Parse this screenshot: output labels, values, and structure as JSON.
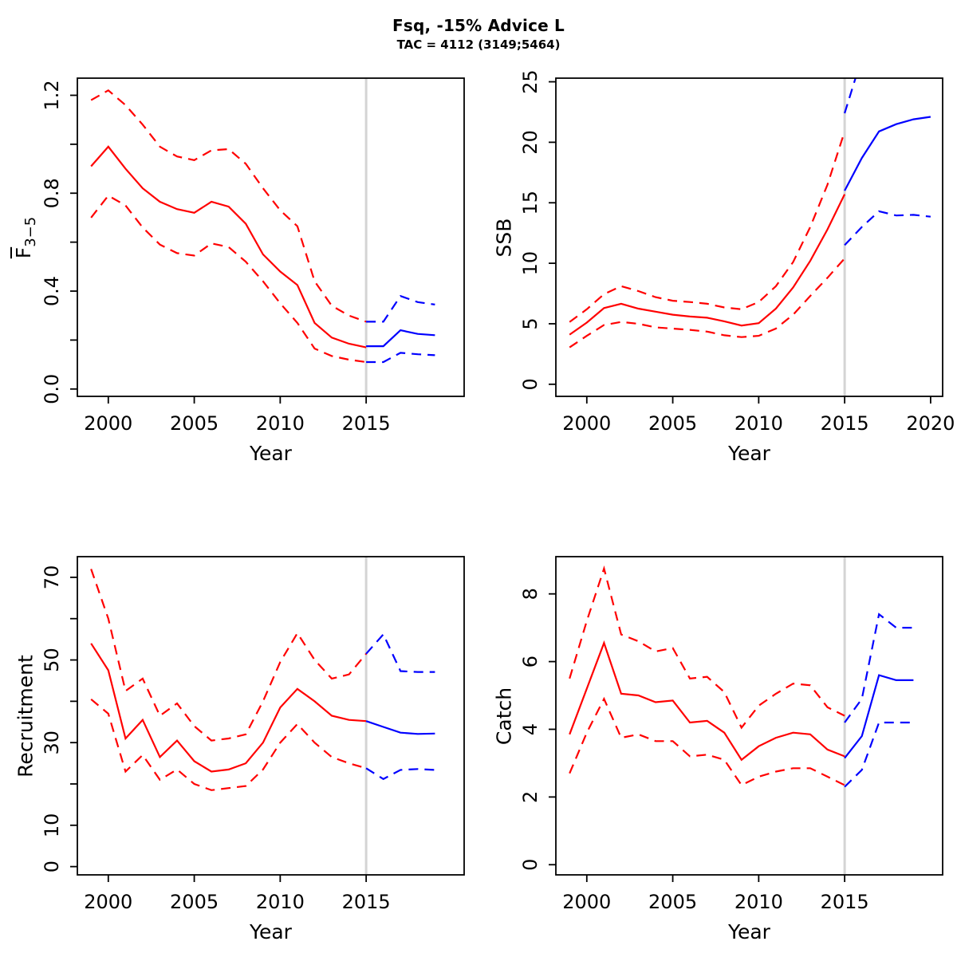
{
  "title": "Fsq, -15% Advice L",
  "subtitle": "TAC = 4112 (3149;5464)",
  "divider_year": 2015,
  "colors": {
    "history": "#ff0000",
    "forecast": "#0000ff",
    "divider": "#d4d4d4",
    "axis": "#000000",
    "background": "#ffffff"
  },
  "chart_data": [
    {
      "id": "fbar",
      "type": "line",
      "xlabel": "Year",
      "ylabel": {
        "text": "F",
        "overline": true,
        "subscript": "3−5"
      },
      "xlim": [
        1998.2,
        2020.7
      ],
      "ylim": [
        -0.03,
        1.27
      ],
      "xticks": {
        "values": [
          2000,
          2005,
          2010,
          2015
        ],
        "labels": [
          "2000",
          "2005",
          "2010",
          "2015"
        ]
      },
      "yticks": {
        "values": [
          0,
          0.2,
          0.4,
          0.6,
          0.8,
          1.0,
          1.2
        ],
        "labels": [
          "0.0",
          "",
          "0.4",
          "",
          "0.8",
          "",
          "1.2"
        ]
      },
      "series": [
        {
          "name": "history-median",
          "color_key": "history",
          "dash": false,
          "x": [
            1999,
            2000,
            2001,
            2002,
            2003,
            2004,
            2005,
            2006,
            2007,
            2008,
            2009,
            2010,
            2011,
            2012,
            2013,
            2014,
            2015
          ],
          "y": [
            0.91,
            0.99,
            0.9,
            0.82,
            0.765,
            0.735,
            0.72,
            0.765,
            0.745,
            0.675,
            0.55,
            0.48,
            0.425,
            0.27,
            0.21,
            0.185,
            0.17
          ]
        },
        {
          "name": "history-upper",
          "color_key": "history",
          "dash": true,
          "x": [
            1999,
            2000,
            2001,
            2002,
            2003,
            2004,
            2005,
            2006,
            2007,
            2008,
            2009,
            2010,
            2011,
            2012,
            2013,
            2014,
            2015
          ],
          "y": [
            1.18,
            1.22,
            1.16,
            1.08,
            0.99,
            0.95,
            0.935,
            0.975,
            0.98,
            0.92,
            0.82,
            0.73,
            0.665,
            0.44,
            0.34,
            0.3,
            0.275
          ]
        },
        {
          "name": "history-lower",
          "color_key": "history",
          "dash": true,
          "x": [
            1999,
            2000,
            2001,
            2002,
            2003,
            2004,
            2005,
            2006,
            2007,
            2008,
            2009,
            2010,
            2011,
            2012,
            2013,
            2014,
            2015
          ],
          "y": [
            0.7,
            0.79,
            0.75,
            0.66,
            0.59,
            0.555,
            0.545,
            0.595,
            0.58,
            0.52,
            0.44,
            0.35,
            0.27,
            0.165,
            0.135,
            0.12,
            0.11
          ]
        },
        {
          "name": "forecast-median",
          "color_key": "forecast",
          "dash": false,
          "x": [
            2015,
            2016,
            2017,
            2018,
            2019
          ],
          "y": [
            0.175,
            0.175,
            0.24,
            0.225,
            0.22
          ]
        },
        {
          "name": "forecast-upper",
          "color_key": "forecast",
          "dash": true,
          "x": [
            2015,
            2016,
            2017,
            2018,
            2019
          ],
          "y": [
            0.275,
            0.275,
            0.38,
            0.355,
            0.345
          ]
        },
        {
          "name": "forecast-lower",
          "color_key": "forecast",
          "dash": true,
          "x": [
            2015,
            2016,
            2017,
            2018,
            2019
          ],
          "y": [
            0.11,
            0.11,
            0.148,
            0.142,
            0.138
          ]
        }
      ]
    },
    {
      "id": "ssb",
      "type": "line",
      "xlabel": "Year",
      "ylabel": {
        "text": "SSB"
      },
      "xlim": [
        1998.2,
        2020.7
      ],
      "ylim": [
        -1,
        25.3
      ],
      "xticks": {
        "values": [
          2000,
          2005,
          2010,
          2015,
          2020
        ],
        "labels": [
          "2000",
          "2005",
          "2010",
          "2015",
          "2020"
        ]
      },
      "yticks": {
        "values": [
          0,
          5,
          10,
          15,
          20,
          25
        ],
        "labels": [
          "0",
          "5",
          "10",
          "15",
          "20",
          "25"
        ]
      },
      "series": [
        {
          "name": "history-median",
          "color_key": "history",
          "dash": false,
          "x": [
            1999,
            2000,
            2001,
            2002,
            2003,
            2004,
            2005,
            2006,
            2007,
            2008,
            2009,
            2010,
            2011,
            2012,
            2013,
            2014,
            2015
          ],
          "y": [
            4.1,
            5.1,
            6.3,
            6.65,
            6.25,
            6.0,
            5.75,
            5.6,
            5.5,
            5.2,
            4.85,
            5.05,
            6.25,
            8.0,
            10.2,
            12.8,
            15.7
          ]
        },
        {
          "name": "history-upper",
          "color_key": "history",
          "dash": true,
          "x": [
            1999,
            2000,
            2001,
            2002,
            2003,
            2004,
            2005,
            2006,
            2007,
            2008,
            2009,
            2010,
            2011,
            2012,
            2013,
            2014,
            2015
          ],
          "y": [
            5.15,
            6.2,
            7.45,
            8.1,
            7.7,
            7.2,
            6.9,
            6.8,
            6.65,
            6.35,
            6.2,
            6.8,
            8.1,
            10.1,
            13.0,
            16.5,
            20.9
          ]
        },
        {
          "name": "history-lower",
          "color_key": "history",
          "dash": true,
          "x": [
            1999,
            2000,
            2001,
            2002,
            2003,
            2004,
            2005,
            2006,
            2007,
            2008,
            2009,
            2010,
            2011,
            2012,
            2013,
            2014,
            2015
          ],
          "y": [
            3.05,
            4.0,
            4.9,
            5.15,
            5.0,
            4.7,
            4.6,
            4.5,
            4.35,
            4.05,
            3.9,
            4.0,
            4.6,
            5.75,
            7.3,
            8.8,
            10.4
          ]
        },
        {
          "name": "forecast-median",
          "color_key": "forecast",
          "dash": false,
          "x": [
            2015,
            2016,
            2017,
            2018,
            2019,
            2020
          ],
          "y": [
            16.0,
            18.7,
            20.9,
            21.5,
            21.9,
            22.1
          ]
        },
        {
          "name": "forecast-upper",
          "color_key": "forecast",
          "dash": true,
          "x": [
            2015,
            2016
          ],
          "y": [
            22.4,
            27.0
          ]
        },
        {
          "name": "forecast-lower",
          "color_key": "forecast",
          "dash": true,
          "x": [
            2015,
            2016,
            2017,
            2018,
            2019,
            2020
          ],
          "y": [
            11.5,
            13.0,
            14.3,
            13.95,
            14.0,
            13.85
          ]
        }
      ]
    },
    {
      "id": "recruitment",
      "type": "line",
      "xlabel": "Year",
      "ylabel": {
        "text": "Recruitment"
      },
      "xlim": [
        1998.2,
        2020.7
      ],
      "ylim": [
        -2,
        75
      ],
      "xticks": {
        "values": [
          2000,
          2005,
          2010,
          2015
        ],
        "labels": [
          "2000",
          "2005",
          "2010",
          "2015"
        ]
      },
      "yticks": {
        "values": [
          0,
          10,
          20,
          30,
          40,
          50,
          60,
          70
        ],
        "labels": [
          "0",
          "10",
          "",
          "30",
          "",
          "50",
          "",
          "70"
        ]
      },
      "series": [
        {
          "name": "history-median",
          "color_key": "history",
          "dash": false,
          "x": [
            1999,
            2000,
            2001,
            2002,
            2003,
            2004,
            2005,
            2006,
            2007,
            2008,
            2009,
            2010,
            2011,
            2012,
            2013,
            2014,
            2015
          ],
          "y": [
            54,
            47.5,
            31,
            35.5,
            26.5,
            30.5,
            25.5,
            23,
            23.5,
            25,
            30,
            38.5,
            43,
            40,
            36.5,
            35.5,
            35.2
          ]
        },
        {
          "name": "history-upper",
          "color_key": "history",
          "dash": true,
          "x": [
            1999,
            2000,
            2001,
            2002,
            2003,
            2004,
            2005,
            2006,
            2007,
            2008,
            2009,
            2010,
            2011,
            2012,
            2013,
            2014,
            2015
          ],
          "y": [
            72,
            60,
            42.5,
            45.5,
            36.5,
            39.5,
            34,
            30.5,
            31,
            32,
            40,
            49.5,
            56.5,
            50,
            45.5,
            46.5,
            51.5
          ]
        },
        {
          "name": "history-lower",
          "color_key": "history",
          "dash": true,
          "x": [
            1999,
            2000,
            2001,
            2002,
            2003,
            2004,
            2005,
            2006,
            2007,
            2008,
            2009,
            2010,
            2011,
            2012,
            2013,
            2014,
            2015
          ],
          "y": [
            40.5,
            37,
            23,
            27,
            21,
            23.5,
            20,
            18.5,
            19,
            19.5,
            23.5,
            30,
            34.5,
            30,
            26.5,
            25,
            23.8
          ]
        },
        {
          "name": "forecast-median",
          "color_key": "forecast",
          "dash": false,
          "x": [
            2015,
            2016,
            2017,
            2018,
            2019
          ],
          "y": [
            35.2,
            33.8,
            32.4,
            32.1,
            32.2
          ]
        },
        {
          "name": "forecast-upper",
          "color_key": "forecast",
          "dash": true,
          "x": [
            2015,
            2016,
            2017,
            2018,
            2019
          ],
          "y": [
            51.5,
            56.2,
            47.3,
            47.1,
            47.1
          ]
        },
        {
          "name": "forecast-lower",
          "color_key": "forecast",
          "dash": true,
          "x": [
            2015,
            2016,
            2017,
            2018,
            2019
          ],
          "y": [
            23.8,
            21.2,
            23.4,
            23.6,
            23.4
          ]
        }
      ]
    },
    {
      "id": "catch",
      "type": "line",
      "xlabel": "Year",
      "ylabel": {
        "text": "Catch"
      },
      "xlim": [
        1998.2,
        2020.7
      ],
      "ylim": [
        -0.3,
        9.1
      ],
      "xticks": {
        "values": [
          2000,
          2005,
          2010,
          2015
        ],
        "labels": [
          "2000",
          "2005",
          "2010",
          "2015"
        ]
      },
      "yticks": {
        "values": [
          0,
          2,
          4,
          6,
          8
        ],
        "labels": [
          "0",
          "2",
          "4",
          "6",
          "8"
        ]
      },
      "series": [
        {
          "name": "history-median",
          "color_key": "history",
          "dash": false,
          "x": [
            1999,
            2000,
            2001,
            2002,
            2003,
            2004,
            2005,
            2006,
            2007,
            2008,
            2009,
            2010,
            2011,
            2012,
            2013,
            2014,
            2015
          ],
          "y": [
            3.85,
            5.2,
            6.55,
            5.05,
            5.0,
            4.8,
            4.85,
            4.2,
            4.25,
            3.9,
            3.1,
            3.5,
            3.75,
            3.9,
            3.85,
            3.4,
            3.2
          ]
        },
        {
          "name": "history-upper",
          "color_key": "history",
          "dash": true,
          "x": [
            1999,
            2000,
            2001,
            2002,
            2003,
            2004,
            2005,
            2006,
            2007,
            2008,
            2009,
            2010,
            2011,
            2012,
            2013,
            2014,
            2015
          ],
          "y": [
            5.5,
            7.2,
            8.75,
            6.8,
            6.6,
            6.3,
            6.4,
            5.5,
            5.55,
            5.1,
            4.05,
            4.7,
            5.05,
            5.35,
            5.3,
            4.65,
            4.4
          ]
        },
        {
          "name": "history-lower",
          "color_key": "history",
          "dash": true,
          "x": [
            1999,
            2000,
            2001,
            2002,
            2003,
            2004,
            2005,
            2006,
            2007,
            2008,
            2009,
            2010,
            2011,
            2012,
            2013,
            2014,
            2015
          ],
          "y": [
            2.7,
            3.9,
            4.9,
            3.75,
            3.85,
            3.65,
            3.65,
            3.2,
            3.25,
            3.1,
            2.35,
            2.6,
            2.75,
            2.85,
            2.85,
            2.6,
            2.35
          ]
        },
        {
          "name": "forecast-median",
          "color_key": "forecast",
          "dash": false,
          "x": [
            2015,
            2016,
            2017,
            2018,
            2019
          ],
          "y": [
            3.15,
            3.8,
            5.6,
            5.45,
            5.45
          ]
        },
        {
          "name": "forecast-upper",
          "color_key": "forecast",
          "dash": true,
          "x": [
            2015,
            2016,
            2017,
            2018,
            2019
          ],
          "y": [
            4.2,
            4.9,
            7.4,
            7.0,
            7.0
          ]
        },
        {
          "name": "forecast-lower",
          "color_key": "forecast",
          "dash": true,
          "x": [
            2015,
            2016,
            2017,
            2018,
            2019
          ],
          "y": [
            2.3,
            2.8,
            4.2,
            4.2,
            4.2
          ]
        }
      ]
    }
  ]
}
